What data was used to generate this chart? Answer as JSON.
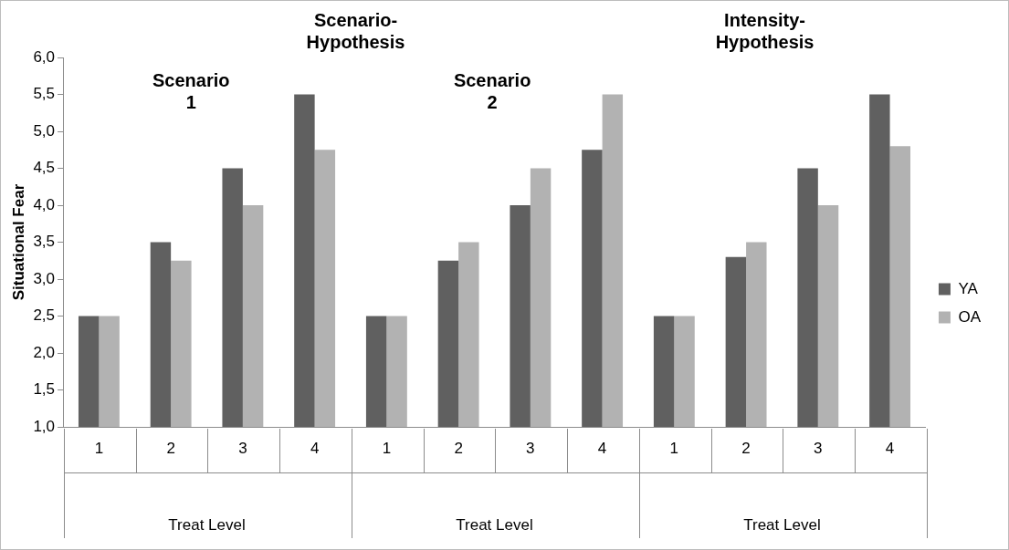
{
  "chart_data": {
    "type": "bar",
    "ylabel": "Situational Fear",
    "categories": [
      "1",
      "2",
      "3",
      "4",
      "1",
      "2",
      "3",
      "4",
      "1",
      "2",
      "3",
      "4"
    ],
    "series": [
      {
        "name": "YA",
        "color": "#606060",
        "values": [
          2.5,
          3.5,
          4.5,
          5.5,
          2.5,
          3.25,
          4.0,
          4.75,
          2.5,
          3.3,
          4.5,
          5.5
        ]
      },
      {
        "name": "OA",
        "color": "#b2b2b2",
        "values": [
          2.5,
          3.25,
          4.0,
          4.75,
          2.5,
          3.5,
          4.5,
          5.5,
          2.5,
          3.5,
          4.0,
          4.8
        ]
      }
    ],
    "ylim": [
      1.0,
      6.0
    ],
    "yticks": [
      {
        "value": 1.0,
        "label": "1,0"
      },
      {
        "value": 1.5,
        "label": "1,5"
      },
      {
        "value": 2.0,
        "label": "2,0"
      },
      {
        "value": 2.5,
        "label": "2,5"
      },
      {
        "value": 3.0,
        "label": "3,0"
      },
      {
        "value": 3.5,
        "label": "3,5"
      },
      {
        "value": 4.0,
        "label": "4,0"
      },
      {
        "value": 4.5,
        "label": "4,5"
      },
      {
        "value": 5.0,
        "label": "5,0"
      },
      {
        "value": 5.5,
        "label": "5,5"
      },
      {
        "value": 6.0,
        "label": "6,0"
      }
    ],
    "annotations": [
      "Scenario-Hypothesis",
      "Scenario 1",
      "Scenario 2",
      "Intensity-Hypothesis",
      "Treat Level",
      "Treat Level",
      "Treat Level"
    ],
    "grid": false,
    "legend": "right"
  }
}
